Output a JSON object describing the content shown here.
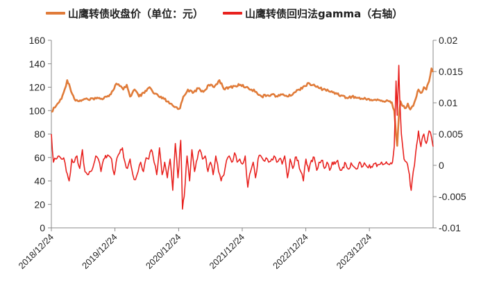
{
  "chart_data": {
    "type": "line",
    "title": "",
    "legend": {
      "position": "top"
    },
    "x_tick_labels": [
      "2018/12/24",
      "2019/12/24",
      "2020/12/24",
      "2021/12/24",
      "2022/12/24",
      "2023/12/24"
    ],
    "x_range": [
      "2018/12/24",
      "2024/12/24"
    ],
    "y_left": {
      "label": "",
      "min": 0,
      "max": 160,
      "ticks": [
        "0",
        "20",
        "40",
        "60",
        "80",
        "100",
        "120",
        "140",
        "160"
      ]
    },
    "y_right": {
      "label": "",
      "min": -0.01,
      "max": 0.02,
      "ticks": [
        "-0.01",
        "-0.005",
        "0",
        "0.005",
        "0.01",
        "0.015",
        "0.02"
      ]
    },
    "grid": false,
    "series": [
      {
        "name": "山鹰转债收盘价（单位：元）",
        "axis": "left",
        "color": "#E07B39",
        "points": [
          [
            "2018/12/24",
            99
          ],
          [
            "2019/01/20",
            104
          ],
          [
            "2019/02/20",
            110
          ],
          [
            "2019/03/10",
            118
          ],
          [
            "2019/03/25",
            126
          ],
          [
            "2019/04/10",
            120
          ],
          [
            "2019/05/05",
            110
          ],
          [
            "2019/06/01",
            108
          ],
          [
            "2019/07/01",
            110
          ],
          [
            "2019/08/01",
            109
          ],
          [
            "2019/09/01",
            111
          ],
          [
            "2019/10/01",
            110
          ],
          [
            "2019/11/01",
            112
          ],
          [
            "2019/12/01",
            114
          ],
          [
            "2020/01/01",
            123
          ],
          [
            "2020/01/20",
            121
          ],
          [
            "2020/02/10",
            118
          ],
          [
            "2020/03/01",
            122
          ],
          [
            "2020/03/20",
            112
          ],
          [
            "2020/04/15",
            118
          ],
          [
            "2020/05/10",
            112
          ],
          [
            "2020/06/10",
            115
          ],
          [
            "2020/07/10",
            120
          ],
          [
            "2020/08/01",
            115
          ],
          [
            "2020/09/01",
            112
          ],
          [
            "2020/10/01",
            110
          ],
          [
            "2020/11/01",
            106
          ],
          [
            "2020/12/01",
            103
          ],
          [
            "2021/01/01",
            102
          ],
          [
            "2021/01/20",
            112
          ],
          [
            "2021/02/15",
            118
          ],
          [
            "2021/03/15",
            115
          ],
          [
            "2021/04/15",
            119
          ],
          [
            "2021/05/15",
            116
          ],
          [
            "2021/06/15",
            122
          ],
          [
            "2021/07/15",
            120
          ],
          [
            "2021/08/15",
            126
          ],
          [
            "2021/09/15",
            118
          ],
          [
            "2021/10/15",
            120
          ],
          [
            "2021/11/15",
            121
          ],
          [
            "2021/12/15",
            122
          ],
          [
            "2022/01/15",
            120
          ],
          [
            "2022/02/15",
            118
          ],
          [
            "2022/03/15",
            116
          ],
          [
            "2022/04/15",
            112
          ],
          [
            "2022/05/15",
            113
          ],
          [
            "2022/06/15",
            114
          ],
          [
            "2022/07/15",
            112
          ],
          [
            "2022/08/15",
            114
          ],
          [
            "2022/09/15",
            112
          ],
          [
            "2022/10/15",
            115
          ],
          [
            "2022/11/15",
            118
          ],
          [
            "2022/12/15",
            121
          ],
          [
            "2023/01/15",
            123
          ],
          [
            "2023/02/15",
            121
          ],
          [
            "2023/03/15",
            119
          ],
          [
            "2023/04/15",
            118
          ],
          [
            "2023/05/15",
            116
          ],
          [
            "2023/06/15",
            115
          ],
          [
            "2023/07/15",
            113
          ],
          [
            "2023/08/15",
            111
          ],
          [
            "2023/09/15",
            112
          ],
          [
            "2023/10/15",
            111
          ],
          [
            "2023/11/15",
            110
          ],
          [
            "2023/12/15",
            110
          ],
          [
            "2024/01/15",
            109
          ],
          [
            "2024/02/15",
            109
          ],
          [
            "2024/03/15",
            108
          ],
          [
            "2024/04/15",
            108
          ],
          [
            "2024/05/01",
            107
          ],
          [
            "2024/05/15",
            100
          ],
          [
            "2024/05/25",
            80
          ],
          [
            "2024/06/01",
            70
          ],
          [
            "2024/06/10",
            95
          ],
          [
            "2024/06/20",
            108
          ],
          [
            "2024/07/01",
            104
          ],
          [
            "2024/07/15",
            102
          ],
          [
            "2024/08/01",
            106
          ],
          [
            "2024/08/15",
            101
          ],
          [
            "2024/09/01",
            104
          ],
          [
            "2024/09/15",
            110
          ],
          [
            "2024/10/01",
            118
          ],
          [
            "2024/10/15",
            115
          ],
          [
            "2024/11/01",
            120
          ],
          [
            "2024/11/15",
            118
          ],
          [
            "2024/12/01",
            125
          ],
          [
            "2024/12/15",
            136
          ],
          [
            "2024/12/24",
            133
          ]
        ]
      },
      {
        "name": "山鹰转债回归法gamma（右轴）",
        "axis": "right",
        "color": "#E8211E",
        "points": [
          [
            "2018/12/24",
            0.005
          ],
          [
            "2019/01/05",
            0.0005
          ],
          [
            "2019/01/20",
            0.001
          ],
          [
            "2019/02/05",
            0.0015
          ],
          [
            "2019/02/20",
            0.001
          ],
          [
            "2019/03/05",
            0.0012
          ],
          [
            "2019/03/20",
            -0.001
          ],
          [
            "2019/04/05",
            -0.0025
          ],
          [
            "2019/04/20",
            0.001
          ],
          [
            "2019/05/05",
            0.0005
          ],
          [
            "2019/05/20",
            0.0015
          ],
          [
            "2019/06/05",
            -0.0005
          ],
          [
            "2019/06/20",
            0.0025
          ],
          [
            "2019/07/05",
            -0.001
          ],
          [
            "2019/07/20",
            -0.0015
          ],
          [
            "2019/08/05",
            -0.001
          ],
          [
            "2019/08/20",
            -0.0003
          ],
          [
            "2019/09/05",
            0.0015
          ],
          [
            "2019/09/20",
            0.001
          ],
          [
            "2019/10/05",
            -0.001
          ],
          [
            "2019/10/20",
            0.001
          ],
          [
            "2019/11/05",
            0.0012
          ],
          [
            "2019/11/20",
            0.0015
          ],
          [
            "2019/12/05",
            0.001
          ],
          [
            "2019/12/20",
            -0.0015
          ],
          [
            "2020/01/05",
            0.0012
          ],
          [
            "2020/01/20",
            0.002
          ],
          [
            "2020/02/05",
            0.0028
          ],
          [
            "2020/02/20",
            0.0005
          ],
          [
            "2020/03/05",
            -0.0005
          ],
          [
            "2020/03/20",
            0.001
          ],
          [
            "2020/04/05",
            -0.0015
          ],
          [
            "2020/04/20",
            -0.0023
          ],
          [
            "2020/05/05",
            -0.001
          ],
          [
            "2020/05/20",
            0.0005
          ],
          [
            "2020/06/05",
            -0.001
          ],
          [
            "2020/06/20",
            0.0012
          ],
          [
            "2020/07/05",
            0.001
          ],
          [
            "2020/07/20",
            0.0025
          ],
          [
            "2020/08/05",
            0.0005
          ],
          [
            "2020/08/20",
            -0.0015
          ],
          [
            "2020/09/05",
            0.0028
          ],
          [
            "2020/09/20",
            -0.0015
          ],
          [
            "2020/10/05",
            0.0005
          ],
          [
            "2020/10/20",
            -0.002
          ],
          [
            "2020/11/05",
            0.001
          ],
          [
            "2020/11/20",
            -0.004
          ],
          [
            "2020/12/05",
            0.0035
          ],
          [
            "2020/12/20",
            -0.002
          ],
          [
            "2021/01/05",
            0.004
          ],
          [
            "2021/01/15",
            -0.007
          ],
          [
            "2021/01/25",
            -0.005
          ],
          [
            "2021/02/10",
            0.0015
          ],
          [
            "2021/02/25",
            -0.0025
          ],
          [
            "2021/03/10",
            0.0025
          ],
          [
            "2021/03/25",
            -0.001
          ],
          [
            "2021/04/10",
            0.001
          ],
          [
            "2021/04/25",
            0.0025
          ],
          [
            "2021/05/10",
            0.001
          ],
          [
            "2021/05/25",
            0.0015
          ],
          [
            "2021/06/10",
            -0.001
          ],
          [
            "2021/06/25",
            0.0005
          ],
          [
            "2021/07/10",
            -0.0015
          ],
          [
            "2021/07/25",
            0.0015
          ],
          [
            "2021/08/10",
            -0.001
          ],
          [
            "2021/08/25",
            -0.0025
          ],
          [
            "2021/09/10",
            -0.0015
          ],
          [
            "2021/09/25",
            0.0008
          ],
          [
            "2021/10/10",
            0.0015
          ],
          [
            "2021/10/25",
            0.0005
          ],
          [
            "2021/11/10",
            0.002
          ],
          [
            "2021/11/25",
            0.0005
          ],
          [
            "2021/12/10",
            0.001
          ],
          [
            "2021/12/25",
            0.0002
          ],
          [
            "2022/01/10",
            0.0015
          ],
          [
            "2022/01/25",
            -0.0035
          ],
          [
            "2022/02/10",
            -0.001
          ],
          [
            "2022/02/25",
            0.0005
          ],
          [
            "2022/03/10",
            -0.002
          ],
          [
            "2022/03/25",
            0.001
          ],
          [
            "2022/04/10",
            0.0015
          ],
          [
            "2022/04/25",
            0.0008
          ],
          [
            "2022/05/10",
            0.0012
          ],
          [
            "2022/05/25",
            0.0005
          ],
          [
            "2022/06/10",
            0.001
          ],
          [
            "2022/06/25",
            0.0015
          ],
          [
            "2022/07/10",
            0.0005
          ],
          [
            "2022/07/25",
            0.001
          ],
          [
            "2022/08/10",
            0.0002
          ],
          [
            "2022/08/25",
            0.0015
          ],
          [
            "2022/09/10",
            -0.002
          ],
          [
            "2022/09/25",
            0.001
          ],
          [
            "2022/10/10",
            -0.0005
          ],
          [
            "2022/10/25",
            0.0013
          ],
          [
            "2022/11/10",
            0.0008
          ],
          [
            "2022/11/25",
            -0.001
          ],
          [
            "2022/12/10",
            -0.0025
          ],
          [
            "2022/12/25",
            0.001
          ],
          [
            "2023/01/10",
            -0.001
          ],
          [
            "2023/01/25",
            0.0008
          ],
          [
            "2023/02/10",
            0.0013
          ],
          [
            "2023/02/25",
            -0.0008
          ],
          [
            "2023/03/10",
            0.0005
          ],
          [
            "2023/03/25",
            0.0008
          ],
          [
            "2023/04/10",
            -0.0005
          ],
          [
            "2023/04/25",
            0.0005
          ],
          [
            "2023/05/10",
            -0.0008
          ],
          [
            "2023/05/25",
            0.0005
          ],
          [
            "2023/06/10",
            0.0002
          ],
          [
            "2023/06/25",
            0.0008
          ],
          [
            "2023/07/10",
            -0.0008
          ],
          [
            "2023/07/25",
            -0.0003
          ],
          [
            "2023/08/10",
            0.0003
          ],
          [
            "2023/08/25",
            -0.0006
          ],
          [
            "2023/09/10",
            0.0004
          ],
          [
            "2023/09/25",
            -0.0002
          ],
          [
            "2023/10/10",
            -0.0006
          ],
          [
            "2023/10/25",
            0.0003
          ],
          [
            "2023/11/10",
            -0.0003
          ],
          [
            "2023/11/25",
            0.0004
          ],
          [
            "2023/12/10",
            -0.0002
          ],
          [
            "2023/12/25",
            0.0001
          ],
          [
            "2024/01/10",
            -0.0003
          ],
          [
            "2024/01/25",
            0.0003
          ],
          [
            "2024/02/10",
            0.0001
          ],
          [
            "2024/02/25",
            0.0002
          ],
          [
            "2024/03/10",
            0.0001
          ],
          [
            "2024/03/25",
            0.0003
          ],
          [
            "2024/04/10",
            0.0002
          ],
          [
            "2024/04/25",
            0.0004
          ],
          [
            "2024/05/05",
            0.0005
          ],
          [
            "2024/05/15",
            0.003
          ],
          [
            "2024/05/25",
            0.0135
          ],
          [
            "2024/06/01",
            0.008
          ],
          [
            "2024/06/10",
            0.016
          ],
          [
            "2024/06/15",
            0.011
          ],
          [
            "2024/06/25",
            0.005
          ],
          [
            "2024/07/10",
            0.001
          ],
          [
            "2024/07/25",
            0.0005
          ],
          [
            "2024/08/10",
            -0.0015
          ],
          [
            "2024/08/20",
            -0.004
          ],
          [
            "2024/09/01",
            -0.001
          ],
          [
            "2024/09/15",
            0.002
          ],
          [
            "2024/10/01",
            0.0055
          ],
          [
            "2024/10/15",
            0.003
          ],
          [
            "2024/11/01",
            0.005
          ],
          [
            "2024/11/15",
            0.0035
          ],
          [
            "2024/12/01",
            0.0055
          ],
          [
            "2024/12/15",
            0.0045
          ],
          [
            "2024/12/24",
            0.003
          ]
        ]
      }
    ]
  }
}
